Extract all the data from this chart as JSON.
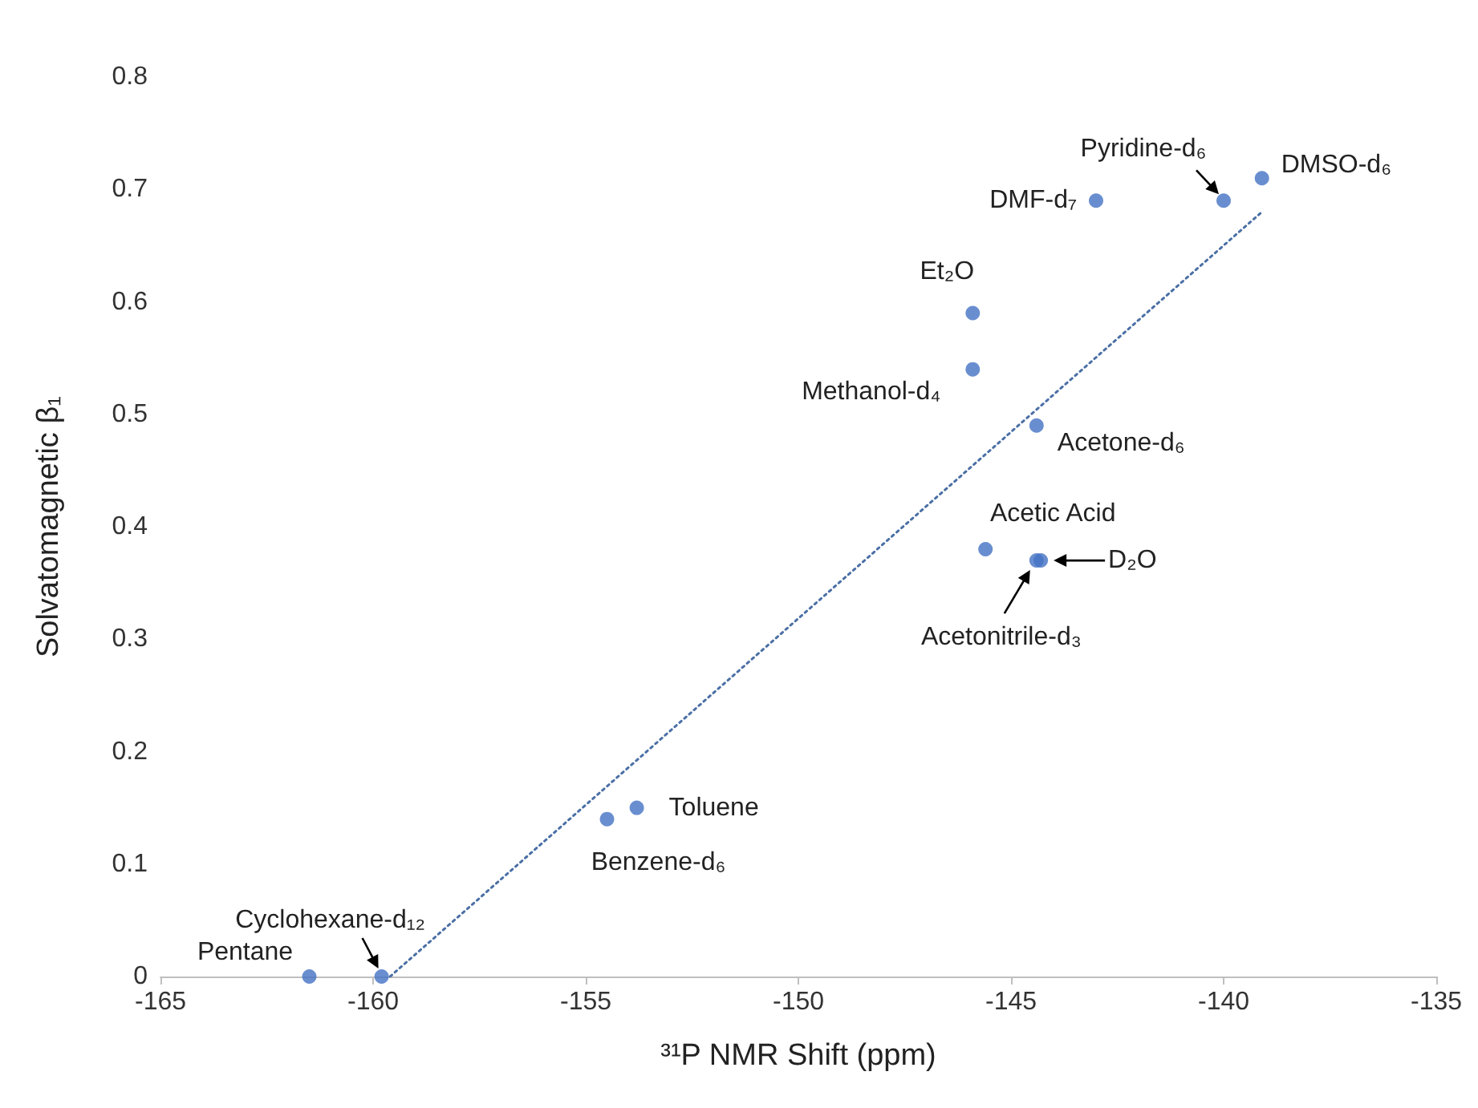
{
  "chart_data": {
    "type": "scatter",
    "xlabel": "³¹P NMR Shift (ppm)",
    "ylabel": "Solvatomagnetic β₁",
    "xlim": [
      -165,
      -135
    ],
    "xticks": [
      -165,
      -160,
      -155,
      -150,
      -145,
      -140,
      -135
    ],
    "ylim": [
      0,
      0.8
    ],
    "yticks": [
      0,
      0.1,
      0.2,
      0.3,
      0.4,
      0.5,
      0.6,
      0.7,
      0.8
    ],
    "grid": false,
    "marker": "circle",
    "series": [
      {
        "color": "#4472c4",
        "x": [
          -161.5,
          -159.8,
          -154.5,
          -153.8,
          -145.6,
          -144.3,
          -144.4,
          -144.4,
          -145.9,
          -145.9,
          -143.0,
          -140.0,
          -139.1
        ],
        "values": [
          0,
          0,
          0.14,
          0.15,
          0.38,
          0.37,
          0.37,
          0.49,
          0.54,
          0.59,
          0.69,
          0.69,
          0.71
        ]
      },
      {
        "type": "line",
        "color": "#4a6fa5",
        "line_style": "dotted",
        "marker": "none",
        "x": [
          -159.6,
          -139.1
        ],
        "values": [
          0,
          0.68
        ]
      }
    ],
    "annotations": [
      {
        "text": "Pentane",
        "x": -161.5,
        "y": 0
      },
      {
        "text": "Cyclohexane-d₁₂",
        "x": -159.8,
        "y": 0
      },
      {
        "text": "Benzene-d₆",
        "x": -154.5,
        "y": 0.14
      },
      {
        "text": "Toluene",
        "x": -153.8,
        "y": 0.15
      },
      {
        "text": "Acetic Acid",
        "x": -145.6,
        "y": 0.38
      },
      {
        "text": "D₂O",
        "x": -144.3,
        "y": 0.37
      },
      {
        "text": "Acetonitrile-d₃",
        "x": -144.4,
        "y": 0.37
      },
      {
        "text": "Acetone-d₆",
        "x": -144.4,
        "y": 0.49
      },
      {
        "text": "Methanol-d₄",
        "x": -145.9,
        "y": 0.54
      },
      {
        "text": "Et₂O",
        "x": -145.9,
        "y": 0.59
      },
      {
        "text": "DMF-d₇",
        "x": -143.0,
        "y": 0.69
      },
      {
        "text": "Pyridine-d₆",
        "x": -140.0,
        "y": 0.69
      },
      {
        "text": "DMSO-d₆",
        "x": -139.1,
        "y": 0.71
      }
    ]
  }
}
